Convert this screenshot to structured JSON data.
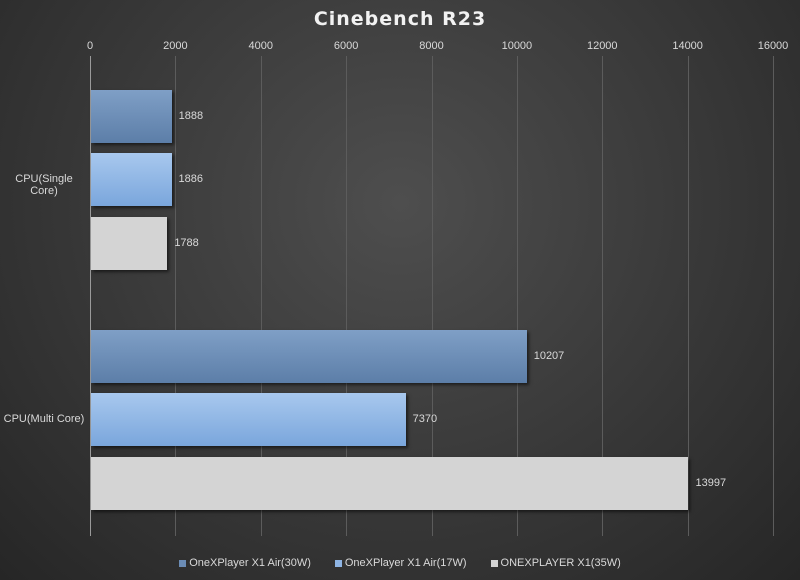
{
  "chart_data": {
    "type": "bar",
    "orientation": "horizontal",
    "title": "Cinebench R23",
    "xlabel": "",
    "ylabel": "",
    "xlim": [
      0,
      16000
    ],
    "x_ticks": [
      "0",
      "2000",
      "4000",
      "6000",
      "8000",
      "10000",
      "12000",
      "14000",
      "16000"
    ],
    "categories": [
      "CPU(Single Core)",
      "CPU(Multi Core)"
    ],
    "series": [
      {
        "name": "OneXPlayer X1 Air(30W)",
        "values": [
          1888,
          10207
        ],
        "color": "#6b8cb5"
      },
      {
        "name": "OneXPlayer X1 Air(17W)",
        "values": [
          1886,
          7370
        ],
        "color": "#8fb5e4"
      },
      {
        "name": "ONEXPLAYER X1(35W)",
        "values": [
          1788,
          13997
        ],
        "color": "#d4d4d4"
      }
    ],
    "grid": true,
    "legend_position": "bottom",
    "data_labels": true
  }
}
